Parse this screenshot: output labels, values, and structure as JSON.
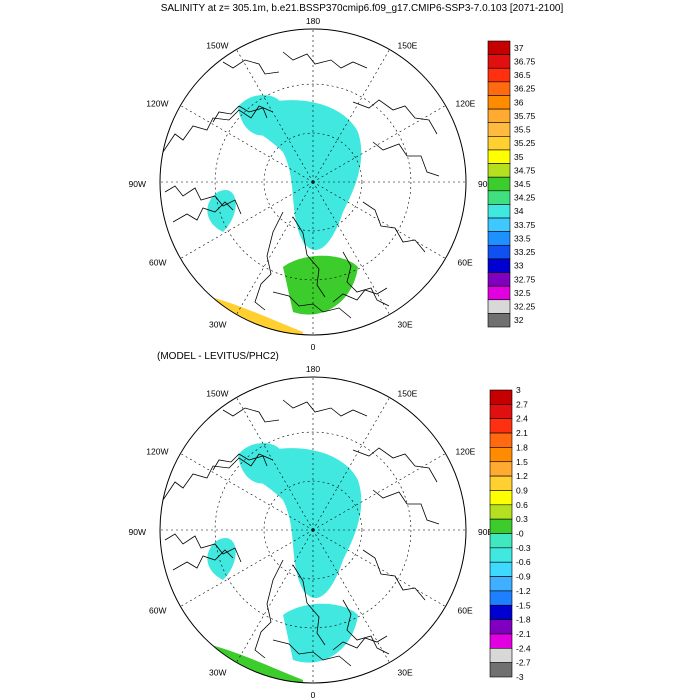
{
  "title": "SALINITY at z= 305.1m, b.e21.BSSP370cmip6.f09_g17.CMIP6-SSP3-7.0.103 [2071-2100]",
  "subtitle": "(MODEL - LEVITUS/PHC2)",
  "longitude_labels": [
    "180",
    "150E",
    "120E",
    "90E",
    "60E",
    "30E",
    "0",
    "30W",
    "60W",
    "90W",
    "120W",
    "150W"
  ],
  "top_colorbar": {
    "labels": [
      "37",
      "36.75",
      "36.5",
      "36.25",
      "36",
      "35.75",
      "35.5",
      "35.25",
      "35",
      "34.75",
      "34.5",
      "34.25",
      "34",
      "33.75",
      "33.5",
      "33.25",
      "33",
      "32.75",
      "32.5",
      "32.25",
      "32"
    ],
    "colors": [
      "#c40000",
      "#e01010",
      "#ff3010",
      "#ff6a10",
      "#ff8c00",
      "#ffaa30",
      "#ffbb40",
      "#ffd030",
      "#ffff00",
      "#b4e020",
      "#3ccc2c",
      "#40e080",
      "#40e8e0",
      "#3fc8ff",
      "#1e90ff",
      "#1050f0",
      "#0000d0",
      "#8000c0",
      "#e000e0",
      "#d8d8d8",
      "#707070"
    ]
  },
  "bottom_colorbar": {
    "labels": [
      "3",
      "2.7",
      "2.4",
      "2.1",
      "1.8",
      "1.5",
      "1.2",
      "0.9",
      "0.6",
      "0.3",
      "-0",
      "-0.3",
      "-0.6",
      "-0.9",
      "-1.2",
      "-1.5",
      "-1.8",
      "-2.1",
      "-2.4",
      "-2.7",
      "-3"
    ],
    "colors": [
      "#c40000",
      "#e01010",
      "#ff3010",
      "#ff6a10",
      "#ff8c00",
      "#ffaa30",
      "#ffd030",
      "#ffff00",
      "#b4e020",
      "#3ccc2c",
      "#40e8c0",
      "#40e8e0",
      "#3fd8ff",
      "#3fb0ff",
      "#1e80ff",
      "#0000d0",
      "#8000c0",
      "#e000e0",
      "#d8d8d8",
      "#707070"
    ]
  }
}
